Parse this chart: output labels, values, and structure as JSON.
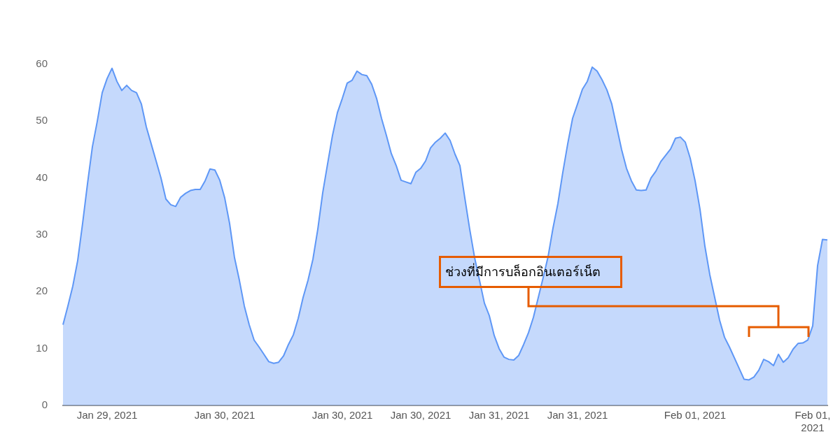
{
  "chart_data": {
    "type": "area",
    "categories": [
      null,
      null,
      null,
      null,
      null,
      null,
      null,
      null,
      null,
      "Jan 29, 2021",
      null,
      null,
      null,
      null,
      null,
      null,
      null,
      null,
      null,
      null,
      null,
      null,
      null,
      null,
      null,
      null,
      null,
      null,
      null,
      null,
      null,
      null,
      null,
      "Jan 30, 2021",
      null,
      null,
      null,
      null,
      null,
      null,
      null,
      null,
      null,
      null,
      null,
      null,
      null,
      null,
      null,
      null,
      null,
      null,
      null,
      null,
      null,
      null,
      null,
      "Jan 30, 2021",
      null,
      null,
      null,
      null,
      null,
      null,
      null,
      null,
      null,
      null,
      null,
      null,
      null,
      null,
      null,
      "Jan 30, 2021",
      null,
      null,
      null,
      null,
      null,
      null,
      null,
      null,
      null,
      null,
      null,
      null,
      null,
      null,
      null,
      "Jan 31, 2021",
      null,
      null,
      null,
      null,
      null,
      null,
      null,
      null,
      null,
      null,
      null,
      null,
      null,
      null,
      null,
      "Jan 31, 2021",
      null,
      null,
      null,
      null,
      null,
      null,
      null,
      null,
      null,
      null,
      null,
      null,
      null,
      null,
      null,
      null,
      null,
      null,
      null,
      null,
      null,
      null,
      null,
      "Feb 01, 2021",
      null,
      null,
      null,
      null,
      null,
      null,
      null,
      null,
      null,
      null,
      null,
      null,
      null,
      null,
      null,
      null,
      null,
      null,
      null,
      null,
      null,
      null,
      null,
      "Feb 01, 2021",
      null,
      null,
      null
    ],
    "series": [
      {
        "color": "#5e97f6",
        "values": [
          14.2,
          17.5,
          21,
          25.5,
          32,
          39,
          45.5,
          50,
          55,
          57.5,
          59.3,
          57,
          55.4,
          56.3,
          55.4,
          55,
          53,
          49,
          46,
          43,
          40,
          36.3,
          35.3,
          35,
          36.6,
          37.3,
          37.8,
          38,
          38,
          39.5,
          41.6,
          41.4,
          39.6,
          36.5,
          32,
          26,
          22,
          17.5,
          14.2,
          11.5,
          10.3,
          9,
          7.7,
          7.4,
          7.6,
          8.7,
          10.7,
          12.4,
          15.3,
          19,
          22,
          25.7,
          31,
          37.4,
          42.5,
          47.5,
          51.5,
          54,
          56.7,
          57.2,
          58.8,
          58.2,
          58,
          56.5,
          54,
          50.5,
          47.5,
          44.3,
          42.2,
          39.6,
          39.3,
          39,
          41,
          41.7,
          43,
          45.3,
          46.3,
          47,
          47.9,
          46.6,
          44.2,
          42.2,
          36.5,
          31,
          26,
          22,
          18,
          15.8,
          12.3,
          10,
          8.5,
          8.1,
          8,
          8.8,
          10.7,
          12.8,
          15.5,
          19,
          22.5,
          26.2,
          31.2,
          35.5,
          41,
          46,
          50.5,
          53,
          55.6,
          57,
          59.5,
          58.8,
          57.3,
          55.5,
          53,
          49,
          45,
          41.7,
          39.5,
          37.9,
          37.8,
          37.9,
          40,
          41.2,
          42.9,
          44,
          45.1,
          47,
          47.2,
          46.3,
          43.5,
          39.5,
          34.5,
          28,
          23,
          19,
          15,
          12,
          10.3,
          8.4,
          6.5,
          4.6,
          4.5,
          5,
          6.2,
          8.1,
          7.7,
          7,
          9,
          7.6,
          8.4,
          9.9,
          10.9,
          11,
          11.5,
          14,
          24.6,
          29.2,
          29.1
        ]
      }
    ],
    "ylim": [
      0,
      60
    ],
    "yticks": [
      0,
      10,
      20,
      30,
      40,
      50,
      60
    ],
    "annotations": [
      "ช่วงที่มีการบล็อกอินเตอร์เน็ต"
    ]
  }
}
